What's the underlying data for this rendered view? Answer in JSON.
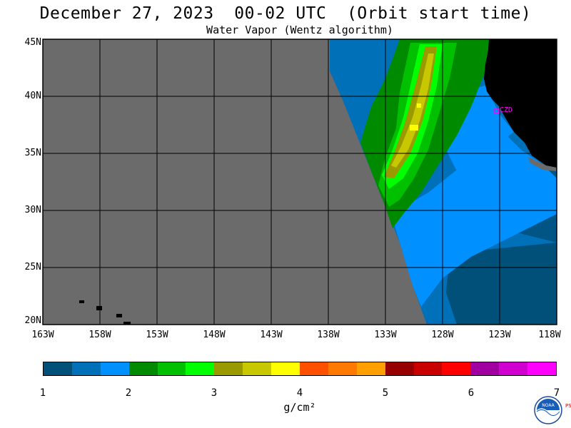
{
  "title": "December 27, 2023  00-02 UTC  (Orbit start time)",
  "subtitle": "Water Vapor (Wentz algorithm)",
  "lat_labels": [
    "45N",
    "40N",
    "35N",
    "30N",
    "25N",
    "20N"
  ],
  "lon_labels": [
    "163W",
    "158W",
    "153W",
    "148W",
    "143W",
    "138W",
    "133W",
    "128W",
    "123W",
    "118W"
  ],
  "station_label": "CZD",
  "colorbar": {
    "colors": [
      "#00507a",
      "#0070b8",
      "#0090ff",
      "#008a00",
      "#00c000",
      "#00ff00",
      "#999900",
      "#c8c800",
      "#ffff00",
      "#ff5000",
      "#ff7800",
      "#ffa000",
      "#960000",
      "#c80000",
      "#ff0000",
      "#a000a0",
      "#d000d0",
      "#ff00ff"
    ],
    "tick_labels": [
      "1",
      "2",
      "3",
      "4",
      "5",
      "6",
      "7"
    ],
    "unit": "g/cm²"
  },
  "colors": {
    "no_data": "#6b6b6b",
    "land": "#000000",
    "grid": "#000000",
    "station": "#ff00ff"
  },
  "logo_text": "NOAA",
  "psl_text": "PSL"
}
